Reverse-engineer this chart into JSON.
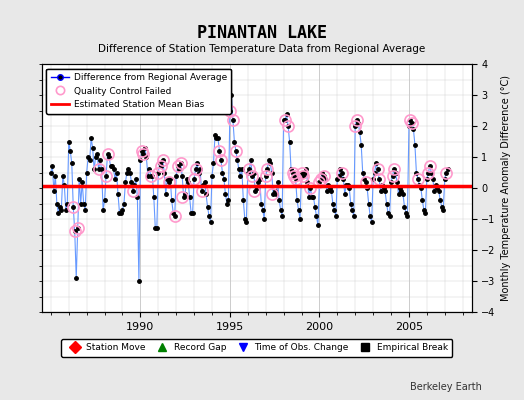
{
  "title": "PINANTAN LAKE",
  "subtitle": "Difference of Station Temperature Data from Regional Average",
  "ylabel": "Monthly Temperature Anomaly Difference (°C)",
  "xlim": [
    1984.5,
    2008.5
  ],
  "ylim": [
    -4,
    4
  ],
  "bias": 0.05,
  "background_color": "#e8e8e8",
  "plot_bg_color": "#ffffff",
  "grid_color": "#cccccc",
  "line_color": "#6699ff",
  "dot_color": "#000000",
  "bias_color": "#ff0000",
  "qc_color": "#ff99cc",
  "watermark": "Berkeley Earth",
  "legend1_items": [
    {
      "label": "Difference from Regional Average",
      "color": "#0000ff",
      "marker": "o",
      "markercolor": "#000000",
      "linestyle": "-"
    },
    {
      "label": "Quality Control Failed",
      "color": "#ff99cc",
      "marker": "o",
      "markercolor": "#ff99cc",
      "linestyle": "none"
    },
    {
      "label": "Estimated Station Mean Bias",
      "color": "#ff0000",
      "marker": "none",
      "markercolor": "#ff0000",
      "linestyle": "-"
    }
  ],
  "legend2_items": [
    {
      "label": "Station Move",
      "color": "#ff0000",
      "marker": "D",
      "markercolor": "#ff0000"
    },
    {
      "label": "Record Gap",
      "color": "#008000",
      "marker": "^",
      "markercolor": "#008000"
    },
    {
      "label": "Time of Obs. Change",
      "color": "#0000ff",
      "marker": "v",
      "markercolor": "#0000ff"
    },
    {
      "label": "Empirical Break",
      "color": "#000000",
      "marker": "s",
      "markercolor": "#000000"
    }
  ],
  "data": {
    "years": [
      1985.0,
      1985.083,
      1985.167,
      1985.25,
      1985.333,
      1985.417,
      1985.5,
      1985.583,
      1985.667,
      1985.75,
      1985.833,
      1985.917,
      1986.0,
      1986.083,
      1986.167,
      1986.25,
      1986.333,
      1986.417,
      1986.5,
      1986.583,
      1986.667,
      1986.75,
      1986.833,
      1986.917,
      1987.0,
      1987.083,
      1987.167,
      1987.25,
      1987.333,
      1987.417,
      1987.5,
      1987.583,
      1987.667,
      1987.75,
      1987.833,
      1987.917,
      1988.0,
      1988.083,
      1988.167,
      1988.25,
      1988.333,
      1988.417,
      1988.5,
      1988.583,
      1988.667,
      1988.75,
      1988.833,
      1988.917,
      1989.0,
      1989.083,
      1989.167,
      1989.25,
      1989.333,
      1989.417,
      1989.5,
      1989.583,
      1989.667,
      1989.75,
      1989.833,
      1989.917,
      1990.0,
      1990.083,
      1990.167,
      1990.25,
      1990.333,
      1990.417,
      1990.5,
      1990.583,
      1990.667,
      1990.75,
      1990.833,
      1990.917,
      1991.0,
      1991.083,
      1991.167,
      1991.25,
      1991.333,
      1991.417,
      1991.5,
      1991.583,
      1991.667,
      1991.75,
      1991.833,
      1991.917,
      1992.0,
      1992.083,
      1992.167,
      1992.25,
      1992.333,
      1992.417,
      1992.5,
      1992.583,
      1992.667,
      1992.75,
      1992.833,
      1992.917,
      1993.0,
      1993.083,
      1993.167,
      1993.25,
      1993.333,
      1993.417,
      1993.5,
      1993.583,
      1993.667,
      1993.75,
      1993.833,
      1993.917,
      1994.0,
      1994.083,
      1994.167,
      1994.25,
      1994.333,
      1994.417,
      1994.5,
      1994.583,
      1994.667,
      1994.75,
      1994.833,
      1994.917,
      1995.0,
      1995.083,
      1995.167,
      1995.25,
      1995.333,
      1995.417,
      1995.5,
      1995.583,
      1995.667,
      1995.75,
      1995.833,
      1995.917,
      1996.0,
      1996.083,
      1996.167,
      1996.25,
      1996.333,
      1996.417,
      1996.5,
      1996.583,
      1996.667,
      1996.75,
      1996.833,
      1996.917,
      1997.0,
      1997.083,
      1997.167,
      1997.25,
      1997.333,
      1997.417,
      1997.5,
      1997.583,
      1997.667,
      1997.75,
      1997.833,
      1997.917,
      1998.0,
      1998.083,
      1998.167,
      1998.25,
      1998.333,
      1998.417,
      1998.5,
      1998.583,
      1998.667,
      1998.75,
      1998.833,
      1998.917,
      1999.0,
      1999.083,
      1999.167,
      1999.25,
      1999.333,
      1999.417,
      1999.5,
      1999.583,
      1999.667,
      1999.75,
      1999.833,
      1999.917,
      2000.0,
      2000.083,
      2000.167,
      2000.25,
      2000.333,
      2000.417,
      2000.5,
      2000.583,
      2000.667,
      2000.75,
      2000.833,
      2000.917,
      2001.0,
      2001.083,
      2001.167,
      2001.25,
      2001.333,
      2001.417,
      2001.5,
      2001.583,
      2001.667,
      2001.75,
      2001.833,
      2001.917,
      2002.0,
      2002.083,
      2002.167,
      2002.25,
      2002.333,
      2002.417,
      2002.5,
      2002.583,
      2002.667,
      2002.75,
      2002.833,
      2002.917,
      2003.0,
      2003.083,
      2003.167,
      2003.25,
      2003.333,
      2003.417,
      2003.5,
      2003.583,
      2003.667,
      2003.75,
      2003.833,
      2003.917,
      2004.0,
      2004.083,
      2004.167,
      2004.25,
      2004.333,
      2004.417,
      2004.5,
      2004.583,
      2004.667,
      2004.75,
      2004.833,
      2004.917,
      2005.0,
      2005.083,
      2005.167,
      2005.25,
      2005.333,
      2005.417,
      2005.5,
      2005.583,
      2005.667,
      2005.75,
      2005.833,
      2005.917,
      2006.0,
      2006.083,
      2006.167,
      2006.25,
      2006.333,
      2006.417,
      2006.5,
      2006.583,
      2006.667,
      2006.75,
      2006.833,
      2006.917,
      2007.0,
      2007.083,
      2007.167
    ],
    "values": [
      0.5,
      0.7,
      -0.1,
      0.4,
      -0.5,
      -0.8,
      -0.6,
      -0.7,
      0.4,
      0.1,
      -0.7,
      -0.5,
      1.5,
      1.2,
      0.8,
      -0.6,
      -1.4,
      -2.9,
      -1.3,
      0.3,
      -0.5,
      0.2,
      -0.5,
      -0.7,
      0.5,
      1.0,
      0.9,
      1.6,
      1.3,
      0.6,
      1.0,
      1.1,
      0.6,
      0.9,
      0.6,
      -0.7,
      -0.4,
      0.4,
      1.1,
      1.0,
      0.7,
      0.7,
      0.6,
      0.3,
      0.5,
      -0.2,
      -0.8,
      -0.8,
      -0.7,
      -0.5,
      0.2,
      0.5,
      0.6,
      0.5,
      0.2,
      -0.1,
      0.1,
      0.3,
      -0.3,
      -3.0,
      0.9,
      1.2,
      1.1,
      1.3,
      1.0,
      0.4,
      0.6,
      0.4,
      0.4,
      -0.3,
      -1.3,
      -1.3,
      0.5,
      0.8,
      0.7,
      0.9,
      0.5,
      -0.2,
      0.3,
      0.2,
      0.3,
      -0.4,
      -0.8,
      -0.9,
      0.4,
      0.7,
      0.6,
      0.8,
      0.4,
      -0.3,
      -0.2,
      0.3,
      0.2,
      -0.3,
      -0.8,
      -0.8,
      0.3,
      0.6,
      0.8,
      0.5,
      0.6,
      -0.1,
      0.1,
      0.2,
      -0.2,
      -0.6,
      -0.9,
      -1.1,
      0.4,
      0.8,
      1.7,
      1.6,
      1.6,
      1.2,
      0.9,
      0.5,
      0.3,
      -0.2,
      -0.5,
      -0.4,
      2.5,
      3.0,
      2.2,
      1.5,
      1.2,
      0.9,
      0.6,
      0.4,
      0.6,
      -0.4,
      -1.0,
      -1.1,
      0.5,
      0.6,
      0.9,
      0.4,
      0.5,
      -0.1,
      0.0,
      0.2,
      0.3,
      -0.5,
      -0.7,
      -1.0,
      0.4,
      0.6,
      0.9,
      0.8,
      0.5,
      -0.2,
      -0.1,
      -0.2,
      0.2,
      -0.4,
      -0.7,
      -0.9,
      2.2,
      2.2,
      2.4,
      2.0,
      1.5,
      0.6,
      0.5,
      0.4,
      0.3,
      -0.4,
      -0.7,
      -1.0,
      0.5,
      0.4,
      0.5,
      0.6,
      0.2,
      -0.3,
      0.0,
      -0.3,
      -0.3,
      -0.6,
      -0.9,
      -1.2,
      0.2,
      0.3,
      0.5,
      0.4,
      0.3,
      -0.1,
      0.1,
      0.0,
      -0.1,
      -0.5,
      -0.7,
      -0.9,
      0.3,
      0.4,
      0.6,
      0.5,
      0.3,
      -0.2,
      0.1,
      0.1,
      0.0,
      -0.5,
      -0.7,
      -0.9,
      2.0,
      2.2,
      2.1,
      1.8,
      1.4,
      0.5,
      0.3,
      0.2,
      0.0,
      -0.5,
      -0.9,
      -1.1,
      0.3,
      0.5,
      0.8,
      0.6,
      0.3,
      -0.1,
      0.1,
      0.0,
      -0.1,
      -0.5,
      -0.8,
      -0.9,
      0.2,
      0.4,
      0.6,
      0.5,
      0.2,
      -0.2,
      0.0,
      -0.1,
      -0.2,
      -0.6,
      -0.8,
      -0.9,
      2.0,
      2.2,
      2.1,
      1.9,
      1.4,
      0.5,
      0.3,
      0.1,
      0.0,
      -0.4,
      -0.7,
      -0.8,
      0.3,
      0.5,
      0.7,
      0.5,
      0.3,
      -0.1,
      0.1,
      0.0,
      -0.1,
      -0.4,
      -0.6,
      -0.7,
      0.3,
      0.5,
      0.6
    ],
    "qc_failed_x": [
      1986.25,
      1986.333,
      1986.5,
      1987.667,
      1988.083,
      1988.167,
      1989.583,
      1990.083,
      1990.167,
      1990.583,
      1991.0,
      1991.167,
      1991.25,
      1991.583,
      1991.917,
      1992.083,
      1992.25,
      1992.333,
      1993.0,
      1993.083,
      1993.417,
      1994.417,
      1994.5,
      1995.0,
      1995.167,
      1995.333,
      1996.083,
      1996.25,
      1996.333,
      1997.0,
      1997.083,
      1997.333,
      1998.083,
      1998.25,
      1998.5,
      1998.583,
      1998.667,
      1999.0,
      1999.083,
      1999.5,
      2000.0,
      2000.083,
      2000.25,
      2001.25,
      2002.0,
      2002.083,
      2002.583,
      2003.25,
      2003.333,
      2004.083,
      2004.167,
      2005.083,
      2005.167,
      2005.5,
      2006.083,
      2006.167,
      2007.083
    ],
    "qc_failed_y": [
      -0.6,
      -1.4,
      -1.3,
      0.6,
      0.4,
      1.1,
      -0.1,
      1.2,
      1.1,
      0.4,
      0.5,
      0.7,
      0.9,
      0.2,
      -0.9,
      0.7,
      0.8,
      -0.3,
      0.3,
      0.6,
      -0.1,
      1.2,
      0.9,
      2.5,
      2.2,
      1.2,
      0.6,
      0.4,
      -0.1,
      0.4,
      0.6,
      -0.2,
      2.2,
      2.0,
      0.5,
      0.4,
      0.3,
      0.5,
      0.4,
      0.0,
      0.2,
      0.3,
      0.4,
      0.5,
      2.0,
      2.2,
      0.2,
      0.6,
      0.3,
      0.4,
      0.6,
      2.2,
      2.1,
      0.3,
      0.5,
      0.7,
      0.5
    ]
  }
}
